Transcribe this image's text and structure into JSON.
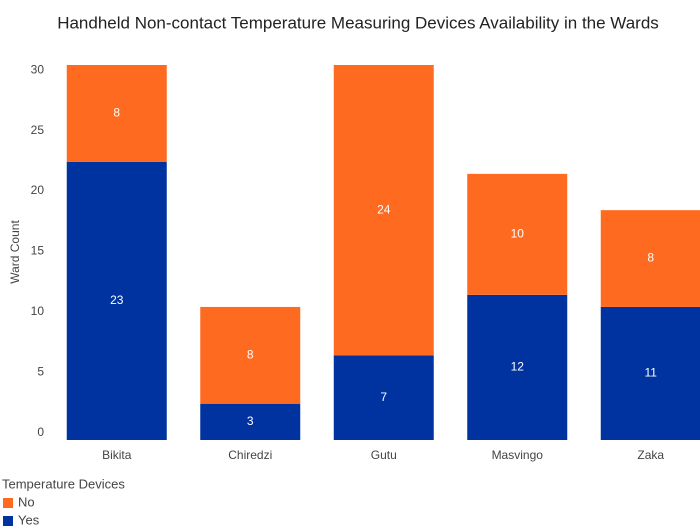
{
  "chart_data": {
    "type": "stacked_bar",
    "title": "Handheld Non-contact Temperature Measuring Devices Availability in the Wards",
    "y_label": "Ward Count",
    "categories": [
      "Bikita",
      "Chiredzi",
      "Gutu",
      "Masvingo",
      "Zaka"
    ],
    "series": [
      {
        "name": "No",
        "color": "#ff6a21",
        "values": [
          8,
          8,
          24,
          10,
          8
        ]
      },
      {
        "name": "Yes",
        "color": "#0033a0",
        "values": [
          23,
          3,
          7,
          12,
          11
        ]
      }
    ],
    "legend_title": "Temperature Devices",
    "legend": "bottom-left",
    "ylim": [
      0,
      31
    ],
    "yticks": [
      0,
      5,
      10,
      15,
      20,
      25,
      30
    ],
    "grid": false
  }
}
